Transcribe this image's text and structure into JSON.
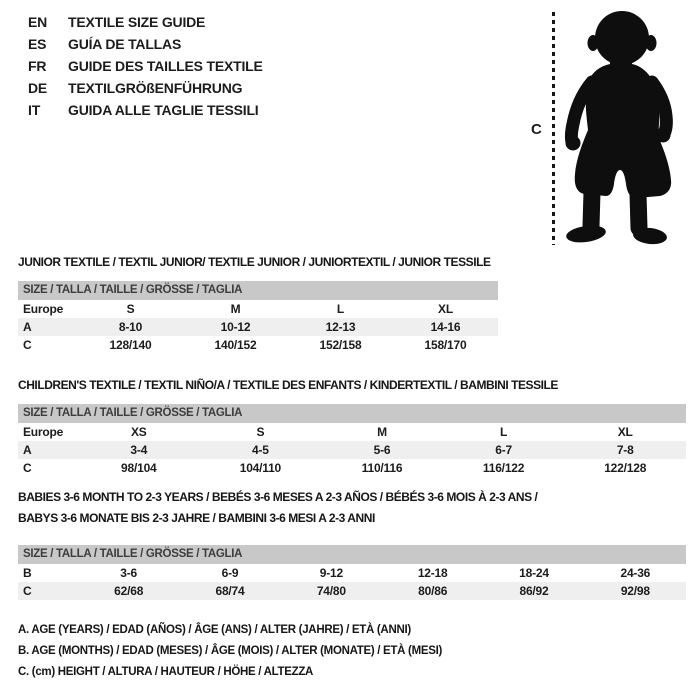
{
  "languages": [
    {
      "code": "EN",
      "label": "TEXTILE SIZE GUIDE"
    },
    {
      "code": "ES",
      "label": "GUÍA DE TALLAS"
    },
    {
      "code": "FR",
      "label": "GUIDE DES TAILLES TEXTILE"
    },
    {
      "code": "DE",
      "label": "TEXTILGRÖßENFÜHRUNG"
    },
    {
      "code": "IT",
      "label": "GUIDA ALLE TAGLIE TESSILI"
    }
  ],
  "figure": {
    "measure_label": "C",
    "icon": "toddler-silhouette"
  },
  "sections": [
    {
      "title_lines": [
        "JUNIOR TEXTILE / TEXTIL JUNIOR/ TEXTILE JUNIOR / JUNIORTEXTIL / JUNIOR TESSILE"
      ],
      "table": {
        "header": "SIZE / TALLA / TAILLE / GRÖSSE / TAGLIA",
        "rows": [
          {
            "label": "Europe",
            "cells": [
              "S",
              "M",
              "L",
              "XL"
            ],
            "shaded": false
          },
          {
            "label": "A",
            "cells": [
              "8-10",
              "10-12",
              "12-13",
              "14-16"
            ],
            "shaded": true
          },
          {
            "label": "C",
            "cells": [
              "128/140",
              "140/152",
              "152/158",
              "158/170"
            ],
            "shaded": false
          }
        ]
      }
    },
    {
      "title_lines": [
        "CHILDREN'S TEXTILE / TEXTIL NIÑO/A / TEXTILE DES ENFANTS / KINDERTEXTIL / BAMBINI TESSILE"
      ],
      "table": {
        "header": "SIZE / TALLA / TAILLE / GRÖSSE / TAGLIA",
        "rows": [
          {
            "label": "Europe",
            "cells": [
              "XS",
              "S",
              "M",
              "L",
              "XL"
            ],
            "shaded": false
          },
          {
            "label": "A",
            "cells": [
              "3-4",
              "4-5",
              "5-6",
              "6-7",
              "7-8"
            ],
            "shaded": true
          },
          {
            "label": "C",
            "cells": [
              "98/104",
              "104/110",
              "110/116",
              "116/122",
              "122/128"
            ],
            "shaded": false
          }
        ]
      }
    },
    {
      "title_lines": [
        "BABIES 3-6 MONTH TO 2-3 YEARS / BEBÉS 3-6 MESES A 2-3 AÑOS / BÉBÉS 3-6 MOIS À 2-3 ANS /",
        "BABYS 3-6 MONATE BIS 2-3 JAHRE / BAMBINI 3-6 MESI A 2-3 ANNI"
      ],
      "table": {
        "header": "SIZE / TALLA / TAILLE / GRÖSSE / TAGLIA",
        "rows": [
          {
            "label": "B",
            "cells": [
              "3-6",
              "6-9",
              "9-12",
              "12-18",
              "18-24",
              "24-36"
            ],
            "shaded": false
          },
          {
            "label": "C",
            "cells": [
              "62/68",
              "68/74",
              "74/80",
              "80/86",
              "86/92",
              "92/98"
            ],
            "shaded": true
          }
        ]
      }
    }
  ],
  "footnotes": [
    "A. AGE (YEARS) / EDAD (AÑOS) / ÂGE (ANS) / ALTER (JAHRE) / ETÀ (ANNI)",
    "B. AGE (MONTHS) / EDAD (MESES) / ÂGE (MOIS) / ALTER (MONATE) / ETÀ (MESI)",
    "C. (cm) HEIGHT / ALTURA / HAUTEUR / HÖHE / ALTEZZA"
  ],
  "colors": {
    "header_bg": "#c8c8c8",
    "row_alt_bg": "#efefef",
    "text": "#1c1c1c",
    "silhouette": "#0e0e0e"
  }
}
